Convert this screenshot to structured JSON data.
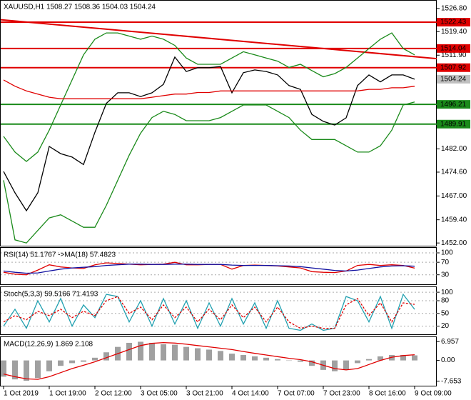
{
  "chart_data": [
    {
      "type": "line",
      "title": "XAUUSD,H1 1508.27 1508.36 1504.03 1504.24",
      "ylim": [
        1450.9,
        1529.5
      ],
      "yticks": [
        {
          "value": 1526.8,
          "label": "1526.80"
        },
        {
          "value": 1519.4,
          "label": "1519.40"
        },
        {
          "value": 1511.9,
          "label": "1511.90"
        },
        {
          "value": 1482,
          "label": "1482.00"
        },
        {
          "value": 1474.6,
          "label": "1474.60"
        },
        {
          "value": 1467,
          "label": "1467.00"
        },
        {
          "value": 1459.4,
          "label": "1459.40"
        },
        {
          "value": 1452,
          "label": "1452.00"
        }
      ],
      "grid": false,
      "series": [
        {
          "color": "#000000",
          "values": [
            1474.8,
            1468,
            1462.3,
            1468,
            1482.8,
            1480.5,
            1479.4,
            1477,
            1487.3,
            1496.5,
            1499.9,
            1499.9,
            1498.7,
            1499.9,
            1502.6,
            1511.3,
            1506.7,
            1507.9,
            1507.9,
            1508.3,
            1499.9,
            1506.3,
            1507.2,
            1506.7,
            1505.6,
            1502.2,
            1501,
            1493,
            1490.8,
            1489.6,
            1491.9,
            1502.2,
            1505.6,
            1503.4,
            1505.6,
            1505.6,
            1504.24
          ]
        },
        {
          "color": "#1a8a1a",
          "values": [
            1486,
            1481,
            1478,
            1481,
            1488,
            1496,
            1504,
            1512,
            1517,
            1519,
            1519,
            1518,
            1517,
            1518,
            1517,
            1515,
            1511,
            1509,
            1509,
            1509,
            1511,
            1513,
            1512,
            1511,
            1510,
            1508,
            1509,
            1507,
            1505,
            1506,
            1508,
            1511,
            1514,
            1517,
            1519,
            1514,
            1512
          ]
        },
        {
          "color": "#1a8a1a",
          "values": [
            1472,
            1453,
            1452,
            1456,
            1460,
            1461,
            1459,
            1457,
            1457,
            1464,
            1472,
            1480,
            1487,
            1492,
            1494,
            1493,
            1491,
            1491,
            1491,
            1492,
            1494,
            1496,
            1496,
            1496,
            1494,
            1492,
            1488,
            1485,
            1485,
            1485,
            1483,
            1481,
            1481,
            1483,
            1488,
            1496,
            1497
          ]
        },
        {
          "color": "#e00000",
          "values": [
            1504,
            1502,
            1500.5,
            1499.5,
            1498.5,
            1498,
            1498,
            1498,
            1498,
            1498,
            1498,
            1498,
            1498,
            1498.5,
            1499,
            1499.5,
            1499.5,
            1500,
            1500,
            1500.5,
            1500.5,
            1500.5,
            1500.5,
            1500.5,
            1500.5,
            1500.5,
            1500.5,
            1500.5,
            1500.5,
            1500.5,
            1500.5,
            1500.5,
            1501,
            1501,
            1501.5,
            1501.5,
            1502
          ]
        }
      ],
      "trendline": {
        "color": "#e00000",
        "values": [
          1523.2,
          1510.8
        ]
      },
      "levels": [
        {
          "value": 1522.43,
          "color": "#e00000"
        },
        {
          "value": 1514.04,
          "color": "#e00000"
        },
        {
          "value": 1507.92,
          "color": "#e00000"
        },
        {
          "value": 1496.21,
          "color": "#1a8a1a"
        },
        {
          "value": 1489.91,
          "color": "#1a8a1a"
        }
      ],
      "current_price": {
        "value": 1504.24,
        "color": "#c0c0c0"
      }
    },
    {
      "type": "line",
      "title": "RSI(14) 51.1767 ->MA(18) 57.4823",
      "ylim": [
        -2.6,
        116
      ],
      "yticks": [
        100,
        70,
        30
      ],
      "grid": true,
      "series": [
        {
          "color": "#e00000",
          "values": [
            38,
            32,
            30,
            45,
            62,
            55,
            52,
            50,
            62,
            68,
            66,
            64,
            62,
            63,
            64,
            70,
            62,
            62,
            63,
            63,
            48,
            60,
            61,
            60,
            58,
            55,
            52,
            40,
            38,
            37,
            42,
            60,
            63,
            60,
            62,
            60,
            51.1767
          ]
        },
        {
          "color": "#1010a0",
          "values": [
            42,
            38,
            35,
            36,
            42,
            48,
            52,
            54,
            56,
            60,
            62,
            64,
            64,
            63,
            63,
            64,
            64,
            63,
            63,
            63,
            61,
            60,
            60,
            60,
            59,
            58,
            56,
            52,
            48,
            44,
            42,
            45,
            50,
            55,
            58,
            59,
            57.4823
          ]
        }
      ]
    },
    {
      "type": "line",
      "title": "Stoch(5,3,3) 59.5166 71.4193",
      "ylim": [
        -0.9,
        112
      ],
      "yticks": [
        100,
        80,
        50,
        20
      ],
      "grid": true,
      "series": [
        {
          "color": "#20a0b0",
          "values": [
            20,
            60,
            15,
            80,
            30,
            85,
            20,
            70,
            40,
            95,
            90,
            30,
            80,
            20,
            85,
            25,
            80,
            15,
            75,
            20,
            85,
            25,
            75,
            15,
            80,
            15,
            10,
            25,
            10,
            15,
            90,
            80,
            30,
            90,
            15,
            95,
            59.5166
          ]
        },
        {
          "color": "#e00000",
          "dashed": true,
          "values": [
            30,
            45,
            35,
            55,
            45,
            60,
            40,
            55,
            45,
            80,
            90,
            50,
            65,
            35,
            70,
            40,
            65,
            30,
            60,
            35,
            70,
            40,
            65,
            30,
            65,
            30,
            15,
            20,
            15,
            15,
            70,
            85,
            45,
            75,
            30,
            75,
            71.4193
          ]
        }
      ]
    },
    {
      "type": "bar",
      "title": "MACD(12,26,9) 1.869 2.108",
      "ylim": [
        -9.6,
        8.6
      ],
      "yticks": [
        6.957,
        {
          "value": 0,
          "label": "0.00"
        },
        -7.653
      ],
      "grid": false,
      "categories": [
        "1 Oct 2019",
        null,
        null,
        null,
        "1 Oct 19:00",
        null,
        null,
        null,
        "2 Oct 12:00",
        null,
        null,
        null,
        "3 Oct 05:00",
        null,
        null,
        null,
        "3 Oct 21:00",
        null,
        null,
        null,
        "4 Oct 14:00",
        null,
        null,
        null,
        "7 Oct 07:00",
        null,
        null,
        null,
        "7 Oct 23:00",
        null,
        null,
        null,
        "8 Oct 16:00",
        null,
        null,
        null,
        "9 Oct 09:00"
      ],
      "series": [
        {
          "color": "#a0a0a0",
          "values": [
            -6,
            -7,
            -7.5,
            -6.5,
            -4,
            -2,
            -1,
            -0.5,
            1,
            3,
            5,
            6.5,
            6.9,
            6.5,
            6,
            5.8,
            5,
            4.5,
            4,
            3.5,
            2.5,
            2,
            1.5,
            1,
            0.5,
            0,
            -0.5,
            -2,
            -3.5,
            -4,
            -3.5,
            -1,
            0.5,
            1.5,
            2,
            2,
            1.869
          ]
        },
        {
          "color": "#e00000",
          "line": true,
          "values": [
            -5,
            -6,
            -6.8,
            -7,
            -6,
            -4.5,
            -3,
            -1.8,
            -0.5,
            1,
            2.5,
            4,
            5.5,
            6.3,
            6.6,
            6.4,
            6,
            5.5,
            5,
            4.5,
            4,
            3.3,
            2.6,
            2,
            1.4,
            0.8,
            0.3,
            -0.5,
            -1.8,
            -3,
            -3.5,
            -3,
            -1.5,
            0,
            1.2,
            1.8,
            2.108
          ]
        }
      ]
    }
  ]
}
